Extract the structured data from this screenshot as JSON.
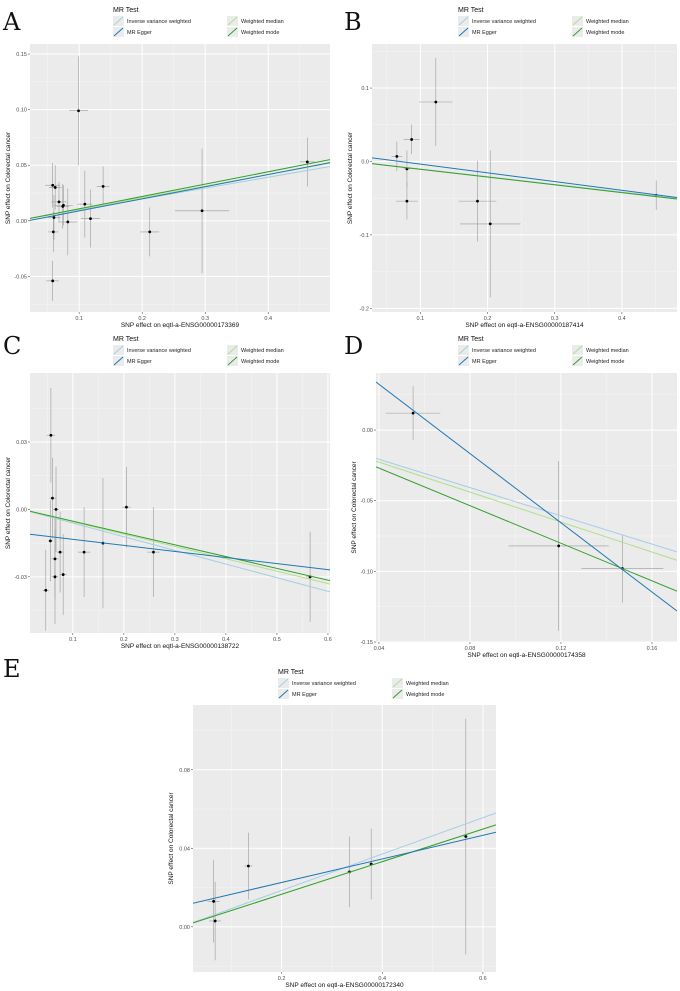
{
  "legend": {
    "title": "MR Test",
    "methods": [
      {
        "name": "Inverse variance weighted",
        "color": "#a6cee3"
      },
      {
        "name": "MR Egger",
        "color": "#1f78b4"
      },
      {
        "name": "Weighted median",
        "color": "#b2df8a"
      },
      {
        "name": "Weighted mode",
        "color": "#33a02c"
      }
    ]
  },
  "chart_data": [
    {
      "panel": "A",
      "type": "scatter",
      "xlabel": "SNP effect on eqtl-a-ENSG00000173369",
      "ylabel": "SNP effect on Colorectal cancer",
      "xlim": [
        0.022,
        0.498
      ],
      "ylim": [
        -0.082,
        0.159
      ],
      "xticks": [
        "0.1",
        "0.2",
        "0.3",
        "0.4"
      ],
      "xtick_values": [
        0.1,
        0.2,
        0.3,
        0.4
      ],
      "yticks": [
        "-0.05",
        "0.00",
        "0.05",
        "0.10",
        "0.15"
      ],
      "ytick_values": [
        -0.05,
        0,
        0.05,
        0.1,
        0.15
      ],
      "points": [
        [
          0.058,
          0.032,
          0.012,
          0.02
        ],
        [
          0.062,
          0.03,
          0.01,
          0.02
        ],
        [
          0.068,
          0.017,
          0.012,
          0.018
        ],
        [
          0.074,
          0.013,
          0.01,
          0.02
        ],
        [
          0.075,
          0.014,
          0.015,
          0.018
        ],
        [
          0.06,
          0.003,
          0.01,
          0.02
        ],
        [
          0.059,
          -0.01,
          0.008,
          0.018
        ],
        [
          0.058,
          -0.054,
          0.01,
          0.018
        ],
        [
          0.082,
          -0.001,
          0.015,
          0.03
        ],
        [
          0.099,
          0.099,
          0.015,
          0.049
        ],
        [
          0.109,
          0.015,
          0.012,
          0.03
        ],
        [
          0.118,
          0.002,
          0.015,
          0.026
        ],
        [
          0.138,
          0.031,
          0.01,
          0.018
        ],
        [
          0.212,
          -0.01,
          0.015,
          0.022
        ],
        [
          0.295,
          0.009,
          0.043,
          0.056
        ],
        [
          0.462,
          0.053,
          0.012,
          0.022
        ]
      ],
      "lines": [
        [
          0.098,
          0
        ],
        [
          0.109,
          -0.002
        ],
        [
          0.104,
          0.0
        ],
        [
          0.111,
          -0.0003
        ]
      ]
    },
    {
      "panel": "B",
      "type": "scatter",
      "xlabel": "SNP effect on eqtl-a-ENSG00000187414",
      "ylabel": "SNP effect on Colorectal cancer",
      "xlim": [
        0.028,
        0.482
      ],
      "ylim": [
        -0.205,
        0.16
      ],
      "xticks": [
        "0.1",
        "0.2",
        "0.3",
        "0.4"
      ],
      "xtick_values": [
        0.1,
        0.2,
        0.3,
        0.4
      ],
      "yticks": [
        "-0.2",
        "-0.1",
        "0.0",
        "0.1"
      ],
      "ytick_values": [
        -0.2,
        -0.1,
        0,
        0.1
      ],
      "points": [
        [
          0.065,
          0.007,
          0.008,
          0.02
        ],
        [
          0.087,
          0.03,
          0.012,
          0.02
        ],
        [
          0.123,
          0.081,
          0.025,
          0.06
        ],
        [
          0.08,
          -0.01,
          0.005,
          0.025
        ],
        [
          0.08,
          -0.054,
          0.016,
          0.025
        ],
        [
          0.185,
          -0.054,
          0.028,
          0.055
        ],
        [
          0.204,
          -0.085,
          0.045,
          0.1
        ],
        [
          0.451,
          -0.046,
          0.005,
          0.02
        ]
      ],
      "lines": [
        [
          -0.104,
          0
        ],
        [
          -0.119,
          0.0083
        ],
        [
          -0.106,
          0.0
        ],
        [
          -0.106,
          0.0
        ]
      ]
    },
    {
      "panel": "C",
      "type": "scatter",
      "xlabel": "SNP effect on eqtl-a-ENSG00000138722",
      "ylabel": "SNP effect on Colorectal cancer",
      "xlim": [
        0.016,
        0.604
      ],
      "ylim": [
        -0.055,
        0.0607
      ],
      "xticks": [
        "0.1",
        "0.2",
        "0.3",
        "0.4",
        "0.5",
        "0.6"
      ],
      "xtick_values": [
        0.1,
        0.2,
        0.3,
        0.4,
        0.5,
        0.6
      ],
      "yticks": [
        "-0.03",
        "0.00",
        "0.03"
      ],
      "ytick_values": [
        -0.03,
        0,
        0.03
      ],
      "points": [
        [
          0.057,
          0.033,
          0.008,
          0.021
        ],
        [
          0.06,
          0.005,
          0.006,
          0.018
        ],
        [
          0.067,
          0.0,
          0.006,
          0.019
        ],
        [
          0.056,
          -0.014,
          0.005,
          0.018
        ],
        [
          0.065,
          -0.022,
          0.007,
          0.018
        ],
        [
          0.075,
          -0.019,
          0.006,
          0.018
        ],
        [
          0.065,
          -0.03,
          0.007,
          0.021
        ],
        [
          0.047,
          -0.036,
          0.006,
          0.018
        ],
        [
          0.081,
          -0.029,
          0.007,
          0.018
        ],
        [
          0.122,
          -0.019,
          0.012,
          0.02
        ],
        [
          0.159,
          -0.015,
          0.0,
          0.029
        ],
        [
          0.205,
          0.001,
          0.008,
          0.018
        ],
        [
          0.258,
          -0.019,
          0.012,
          0.02
        ],
        [
          0.565,
          -0.03,
          0.008,
          0.02
        ]
      ],
      "lines": [
        [
          -0.0608,
          0
        ],
        [
          -0.027,
          -0.0106
        ],
        [
          -0.055,
          0.0
        ],
        [
          -0.0525,
          0.0
        ]
      ]
    },
    {
      "panel": "D",
      "type": "scatter",
      "xlabel": "SNP effect on eqtl-a-ENSG00000174358",
      "ylabel": "SNP effect on Colorectal cancer",
      "xlim": [
        0.0387,
        0.171
      ],
      "ylim": [
        -0.15,
        0.0404
      ],
      "xticks": [
        "0.04",
        "0.08",
        "0.12",
        "0.16"
      ],
      "xtick_values": [
        0.04,
        0.08,
        0.12,
        0.16
      ],
      "yticks": [
        "-0.15",
        "-0.10",
        "-0.05",
        "0.00"
      ],
      "ytick_values": [
        -0.15,
        -0.1,
        -0.05,
        0
      ],
      "points": [
        [
          0.055,
          0.012,
          0.012,
          0.019
        ],
        [
          0.119,
          -0.082,
          0.022,
          0.06
        ],
        [
          0.147,
          -0.098,
          0.018,
          0.024
        ]
      ],
      "lines": [
        [
          -0.5,
          -0.0007
        ],
        [
          -1.225,
          0.0814
        ],
        [
          -0.53,
          -0.0015
        ],
        [
          -0.665,
          -0.0003
        ]
      ]
    },
    {
      "panel": "E",
      "type": "scatter",
      "xlabel": "SNP effect on eqtl-a-ENSG00000172340",
      "ylabel": "SNP effect on Colorectal cancer",
      "xlim": [
        0.024,
        0.626
      ],
      "ylim": [
        -0.023,
        0.113
      ],
      "xticks": [
        "0.2",
        "0.4",
        "0.6"
      ],
      "xtick_values": [
        0.2,
        0.4,
        0.6
      ],
      "yticks": [
        "0.00",
        "0.04",
        "0.08"
      ],
      "ytick_values": [
        0,
        0.04,
        0.08
      ],
      "points": [
        [
          0.065,
          0.013,
          0.012,
          0.021
        ],
        [
          0.068,
          0.003,
          0.012,
          0.02
        ],
        [
          0.134,
          0.031,
          0.008,
          0.017
        ],
        [
          0.335,
          0.028,
          0.005,
          0.018
        ],
        [
          0.378,
          0.032,
          0.005,
          0.018
        ],
        [
          0.566,
          0.046,
          0.005,
          0.06
        ]
      ],
      "lines": [
        [
          0.0927,
          0
        ],
        [
          0.06,
          0.0106
        ],
        [
          0.083,
          0.0
        ],
        [
          0.083,
          0.0
        ]
      ]
    }
  ]
}
